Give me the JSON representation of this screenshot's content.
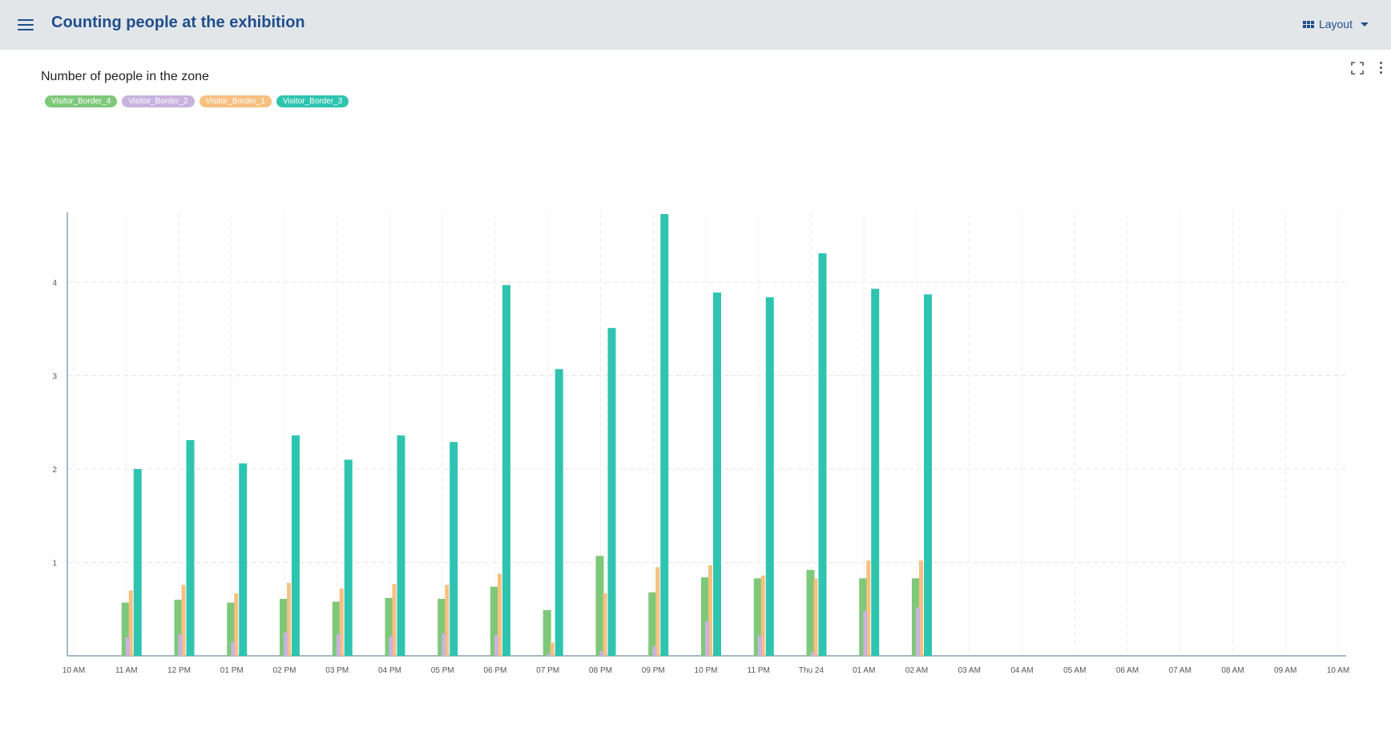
{
  "header": {
    "title": "Counting people at the exhibition",
    "layout_label": "Layout",
    "menu_icon": "hamburger-menu-icon",
    "layout_icon": "grid-icon"
  },
  "panel": {
    "title": "Number of people in the zone",
    "actions": [
      "fullscreen-icon",
      "more-vertical-icon"
    ]
  },
  "chart_data": {
    "type": "bar",
    "categories": [
      "10 AM",
      "11 AM",
      "12 PM",
      "01 PM",
      "02 PM",
      "03 PM",
      "04 PM",
      "05 PM",
      "06 PM",
      "07 PM",
      "08 PM",
      "09 PM",
      "10 PM",
      "11 PM",
      "Thu 24",
      "01 AM",
      "02 AM",
      "03 AM",
      "04 AM",
      "05 AM",
      "06 AM",
      "07 AM",
      "08 AM",
      "09 AM",
      "10 AM"
    ],
    "y_ticks": [
      1,
      2,
      3,
      4
    ],
    "ylim": [
      0,
      4.73
    ],
    "grid": true,
    "legend_position": "top-left",
    "series": [
      {
        "name": "Visitor_Border_4",
        "color": "#7ec87a",
        "values": [
          null,
          0.57,
          0.6,
          0.57,
          0.61,
          0.58,
          0.62,
          0.61,
          0.74,
          0.49,
          1.07,
          0.68,
          0.84,
          0.83,
          0.92,
          0.83,
          0.83,
          null,
          null,
          null,
          null,
          null,
          null,
          null,
          null
        ]
      },
      {
        "name": "Visitor_Border_2",
        "color": "#c9b3de",
        "values": [
          null,
          0.2,
          0.23,
          0.15,
          0.25,
          0.23,
          0.21,
          0.24,
          0.22,
          0.02,
          0.05,
          0.1,
          0.37,
          0.22,
          0.04,
          0.48,
          0.52,
          null,
          null,
          null,
          null,
          null,
          null,
          null,
          null
        ]
      },
      {
        "name": "Visitor_Border_1",
        "color": "#f8c080",
        "values": [
          null,
          0.7,
          0.76,
          0.67,
          0.78,
          0.72,
          0.77,
          0.76,
          0.88,
          0.14,
          0.67,
          0.95,
          0.97,
          0.86,
          0.83,
          1.02,
          1.02,
          null,
          null,
          null,
          null,
          null,
          null,
          null,
          null
        ]
      },
      {
        "name": "Visitor_Border_3",
        "color": "#2ec4b0",
        "values": [
          null,
          2.0,
          2.31,
          2.06,
          2.36,
          2.1,
          2.36,
          2.29,
          3.97,
          3.07,
          3.51,
          4.73,
          3.89,
          3.84,
          4.31,
          3.93,
          3.87,
          null,
          null,
          null,
          null,
          null,
          null,
          null,
          null
        ]
      }
    ]
  }
}
